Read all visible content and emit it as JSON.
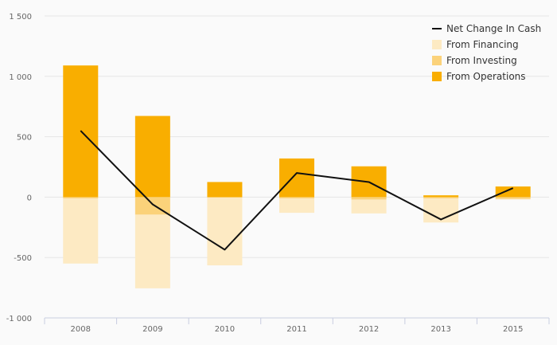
{
  "chart_data": {
    "type": "bar",
    "categories": [
      "2008",
      "2009",
      "2010",
      "2011",
      "2012",
      "2013",
      "2015"
    ],
    "series": [
      {
        "name": "From Operations",
        "kind": "bar",
        "color": "#f9ae00",
        "values": [
          1090,
          672,
          125,
          320,
          255,
          15,
          88
        ]
      },
      {
        "name": "From Investing",
        "kind": "bar",
        "color": "#fbd27a",
        "values": [
          -10,
          -145,
          -5,
          -10,
          -20,
          -10,
          -15
        ]
      },
      {
        "name": "From Financing",
        "kind": "bar",
        "color": "#fdeac3",
        "values": [
          -540,
          -610,
          -560,
          -120,
          -115,
          -200,
          -5
        ]
      },
      {
        "name": "Net Change In Cash",
        "kind": "line",
        "color": "#111111",
        "values": [
          550,
          -60,
          -435,
          200,
          125,
          -185,
          75
        ]
      }
    ],
    "y_ticks": [
      "1 500",
      "1 000",
      "500",
      "0",
      "-500",
      "-1 000"
    ],
    "ylim": [
      -1000,
      1500
    ],
    "grid": true,
    "legend_position": "top-right",
    "title": "",
    "xlabel": "",
    "ylabel": ""
  },
  "legend": [
    {
      "label": "Net Change In Cash",
      "icon": "line"
    },
    {
      "label": "From Financing",
      "icon": "square",
      "color": "#fdeac3"
    },
    {
      "label": "From Investing",
      "icon": "square",
      "color": "#fbd27a"
    },
    {
      "label": "From Operations",
      "icon": "square",
      "color": "#f9ae00"
    }
  ]
}
